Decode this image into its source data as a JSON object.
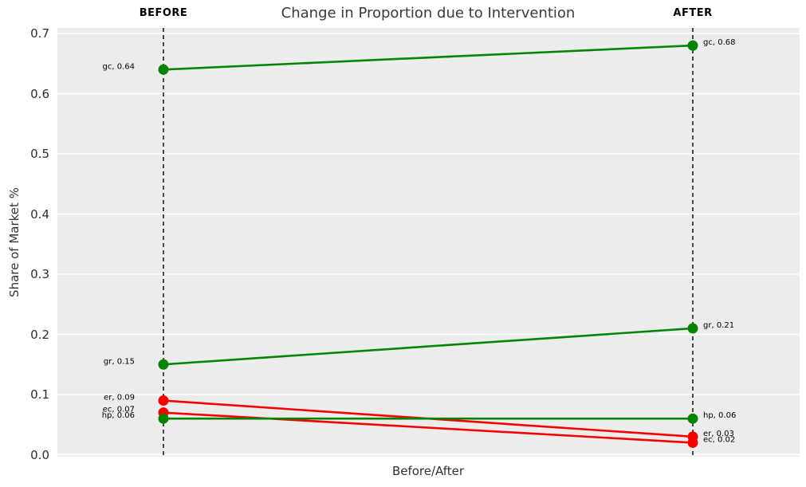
{
  "chart_data": {
    "type": "line",
    "variant": "slopegraph",
    "title": "Change in Proportion due to Intervention",
    "xlabel": "Before/After",
    "ylabel": "Share of Market %",
    "x_categories": [
      "BEFORE",
      "AFTER"
    ],
    "ylim": [
      0.0,
      0.71
    ],
    "yticks": [
      0.0,
      0.1,
      0.2,
      0.3,
      0.4,
      0.5,
      0.6,
      0.7
    ],
    "ytick_labels": [
      "0.0",
      "0.1",
      "0.2",
      "0.3",
      "0.4",
      "0.5",
      "0.6",
      "0.7"
    ],
    "grid": true,
    "legend_position": "none",
    "series": [
      {
        "name": "gc",
        "values": [
          0.64,
          0.68
        ],
        "color": "#048404",
        "labels": [
          "gc, 0.64",
          "gc, 0.68"
        ]
      },
      {
        "name": "gr",
        "values": [
          0.15,
          0.21
        ],
        "color": "#048404",
        "labels": [
          "gr, 0.15",
          "gr, 0.21"
        ]
      },
      {
        "name": "er",
        "values": [
          0.09,
          0.03
        ],
        "color": "#f60000",
        "labels": [
          "er, 0.09",
          "er, 0.03"
        ]
      },
      {
        "name": "ec",
        "values": [
          0.07,
          0.02
        ],
        "color": "#f60000",
        "labels": [
          "ec, 0.07",
          "ec, 0.02"
        ]
      },
      {
        "name": "hp",
        "values": [
          0.06,
          0.06
        ],
        "color": "#048404",
        "labels": [
          "hp, 0.06",
          "hp, 0.06"
        ]
      }
    ],
    "colors": {
      "increase": "#048404",
      "decrease": "#f60000",
      "plot_bg": "#ececec",
      "gridline": "#ffffff",
      "event_line": "#000000",
      "title_text": "#3a3a3a"
    }
  }
}
